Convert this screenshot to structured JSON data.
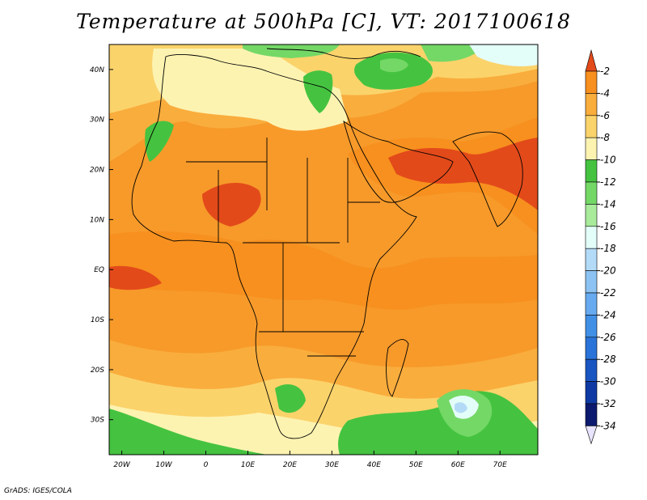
{
  "title": "Temperature at 500hPa [C], VT: 2017100618",
  "footer": "GrADS: IGES/COLA",
  "map": {
    "lon_range": [
      -23,
      79
    ],
    "lat_range": [
      -37,
      45
    ],
    "lon_ticks": [
      "20W",
      "10W",
      "0",
      "10E",
      "20E",
      "30E",
      "40E",
      "50E",
      "60E",
      "70E"
    ],
    "lat_ticks": [
      "40N",
      "30N",
      "20N",
      "10N",
      "EQ",
      "10S",
      "20S",
      "30S"
    ]
  },
  "colorbar": {
    "labels": [
      "-2",
      "-4",
      "-6",
      "-8",
      "-10",
      "-12",
      "-14",
      "-16",
      "-18",
      "-20",
      "-22",
      "-24",
      "-26",
      "-28",
      "-30",
      "-32",
      "-34"
    ],
    "colors": [
      "#e34a1a",
      "#f7901e",
      "#f9ad3d",
      "#fbd36b",
      "#fdf3b1",
      "#45c340",
      "#74d866",
      "#a8eb9b",
      "#e3fdf9",
      "#b3dbf8",
      "#8cc3f3",
      "#67aaef",
      "#4190e6",
      "#2a73d8",
      "#1a56c2",
      "#0f3aa4",
      "#0b1a6e"
    ]
  },
  "colors": {
    "background": "#f79a2a",
    "land_border": "#000000"
  }
}
